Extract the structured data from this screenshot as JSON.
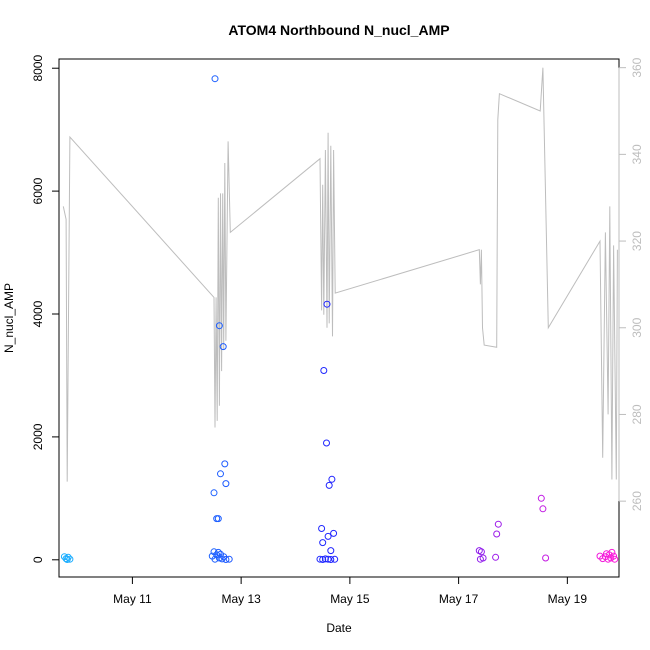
{
  "chart_data": {
    "type": "scatter",
    "title": "ATOM4 Northbound N_nucl_AMP",
    "xlabel": "Date",
    "ylabel": "N_nucl_AMP",
    "x_unit": "days (May 2019 calendar day)",
    "xlim": [
      9.65,
      19.95
    ],
    "ylim": [
      -280,
      8150
    ],
    "y2lim": [
      242.5,
      362
    ],
    "x_ticks": [
      {
        "value": 11,
        "label": "May 11"
      },
      {
        "value": 13,
        "label": "May 13"
      },
      {
        "value": 15,
        "label": "May 15"
      },
      {
        "value": 17,
        "label": "May 17"
      },
      {
        "value": 19,
        "label": "May 19"
      }
    ],
    "y_ticks": [
      0,
      2000,
      4000,
      6000,
      8000
    ],
    "y2_ticks": [
      260,
      280,
      300,
      320,
      340,
      360
    ],
    "grid": false,
    "legend": "none",
    "colors": {
      "line": "#bdbdbd",
      "axis": "#000000",
      "right_axis": "#bdbdbd",
      "start": "#1ab2ff",
      "middle": "#1f1fff",
      "end": "#ff1ad9"
    },
    "series": [
      {
        "type": "scatter",
        "axis": "left",
        "points": [
          [
            9.75,
            50
          ],
          [
            9.78,
            20
          ],
          [
            9.8,
            5
          ],
          [
            9.82,
            40
          ],
          [
            9.85,
            10
          ],
          [
            12.52,
            7830
          ],
          [
            12.5,
            1090
          ],
          [
            12.55,
            670
          ],
          [
            12.58,
            670
          ],
          [
            12.6,
            3810
          ],
          [
            12.62,
            1400
          ],
          [
            12.67,
            3470
          ],
          [
            12.7,
            1560
          ],
          [
            12.72,
            1240
          ],
          [
            12.47,
            60
          ],
          [
            12.5,
            130
          ],
          [
            12.52,
            10
          ],
          [
            12.55,
            80
          ],
          [
            12.58,
            120
          ],
          [
            12.6,
            30
          ],
          [
            12.62,
            90
          ],
          [
            12.65,
            15
          ],
          [
            12.68,
            50
          ],
          [
            12.72,
            5
          ],
          [
            12.78,
            10
          ],
          [
            14.48,
            510
          ],
          [
            14.5,
            280
          ],
          [
            14.52,
            3080
          ],
          [
            14.57,
            1900
          ],
          [
            14.58,
            4160
          ],
          [
            14.62,
            1210
          ],
          [
            14.65,
            150
          ],
          [
            14.67,
            1310
          ],
          [
            14.7,
            430
          ],
          [
            14.6,
            380
          ],
          [
            14.45,
            10
          ],
          [
            14.5,
            5
          ],
          [
            14.55,
            15
          ],
          [
            14.6,
            10
          ],
          [
            14.65,
            5
          ],
          [
            14.72,
            8
          ],
          [
            17.38,
            150
          ],
          [
            17.42,
            130
          ],
          [
            17.45,
            30
          ],
          [
            17.4,
            10
          ],
          [
            17.68,
            40
          ],
          [
            17.7,
            420
          ],
          [
            17.73,
            580
          ],
          [
            18.52,
            1000
          ],
          [
            18.55,
            830
          ],
          [
            18.6,
            30
          ],
          [
            19.6,
            60
          ],
          [
            19.65,
            20
          ],
          [
            19.7,
            50
          ],
          [
            19.72,
            100
          ],
          [
            19.75,
            10
          ],
          [
            19.77,
            80
          ],
          [
            19.8,
            30
          ],
          [
            19.82,
            120
          ],
          [
            19.85,
            60
          ],
          [
            19.87,
            10
          ]
        ]
      },
      {
        "type": "line",
        "axis": "right",
        "points": [
          [
            9.73,
            328
          ],
          [
            9.78,
            325
          ],
          [
            9.8,
            264.5
          ],
          [
            9.85,
            344
          ],
          [
            12.5,
            307
          ],
          [
            12.52,
            277
          ],
          [
            12.54,
            307
          ],
          [
            12.56,
            278.5
          ],
          [
            12.58,
            330
          ],
          [
            12.6,
            282
          ],
          [
            12.62,
            331
          ],
          [
            12.64,
            290
          ],
          [
            12.66,
            331
          ],
          [
            12.68,
            295
          ],
          [
            12.7,
            338
          ],
          [
            12.72,
            297
          ],
          [
            12.76,
            343
          ],
          [
            12.8,
            322
          ],
          [
            14.45,
            339
          ],
          [
            14.48,
            304
          ],
          [
            14.5,
            333
          ],
          [
            14.52,
            303
          ],
          [
            14.55,
            341
          ],
          [
            14.58,
            300
          ],
          [
            14.6,
            345
          ],
          [
            14.62,
            301
          ],
          [
            14.65,
            342
          ],
          [
            14.68,
            298
          ],
          [
            14.7,
            341
          ],
          [
            14.73,
            308
          ],
          [
            17.38,
            318
          ],
          [
            17.4,
            310
          ],
          [
            17.42,
            318
          ],
          [
            17.44,
            300
          ],
          [
            17.47,
            296
          ],
          [
            17.7,
            295.5
          ],
          [
            17.72,
            348
          ],
          [
            17.75,
            354
          ],
          [
            18.5,
            350
          ],
          [
            18.55,
            360
          ],
          [
            18.65,
            300
          ],
          [
            19.6,
            320
          ],
          [
            19.65,
            270
          ],
          [
            19.7,
            322
          ],
          [
            19.75,
            280
          ],
          [
            19.78,
            328
          ],
          [
            19.82,
            265
          ],
          [
            19.85,
            319
          ],
          [
            19.9,
            265
          ],
          [
            19.92,
            318
          ]
        ]
      }
    ]
  }
}
